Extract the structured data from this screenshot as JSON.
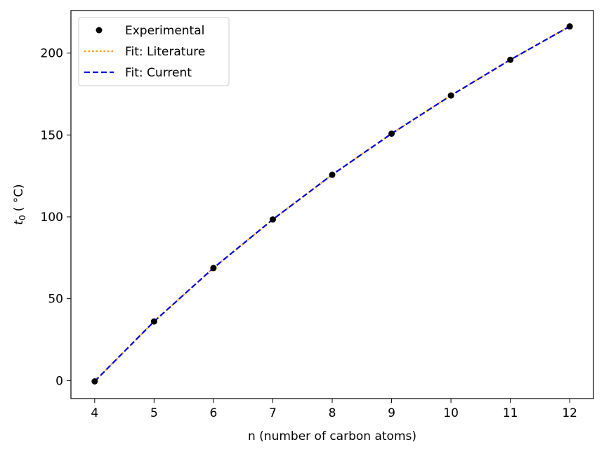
{
  "chart_data": {
    "type": "scatter",
    "xlabel": "n (number of carbon atoms)",
    "ylabel": {
      "var": "t",
      "sub": "0",
      "unit": "( °C)"
    },
    "xlim": [
      3.6,
      12.4
    ],
    "ylim": [
      -11,
      226
    ],
    "x_ticks": [
      4,
      5,
      6,
      7,
      8,
      9,
      10,
      11,
      12
    ],
    "y_ticks": [
      0,
      50,
      100,
      150,
      200
    ],
    "grid": false,
    "legend_position": "top-left",
    "series": [
      {
        "name": "Experimental",
        "kind": "markers",
        "color": "#000000",
        "x": [
          4,
          5,
          6,
          7,
          8,
          9,
          10,
          11,
          12
        ],
        "y": [
          -0.5,
          36.1,
          68.7,
          98.4,
          125.7,
          150.8,
          174.1,
          195.9,
          216.3
        ]
      },
      {
        "name": "Fit: Literature",
        "kind": "dotted-line",
        "color": "#ff9900",
        "x": [
          4,
          5,
          6,
          7,
          8,
          9,
          10,
          11,
          12
        ],
        "y": [
          -0.5,
          36.1,
          68.7,
          98.4,
          125.7,
          150.8,
          174.1,
          195.9,
          216.3
        ]
      },
      {
        "name": "Fit: Current",
        "kind": "dashed-line",
        "color": "#0000dd",
        "x": [
          4,
          5,
          6,
          7,
          8,
          9,
          10,
          11,
          12
        ],
        "y": [
          -0.5,
          36.1,
          68.7,
          98.4,
          125.7,
          150.8,
          174.1,
          195.9,
          216.3
        ]
      }
    ]
  }
}
